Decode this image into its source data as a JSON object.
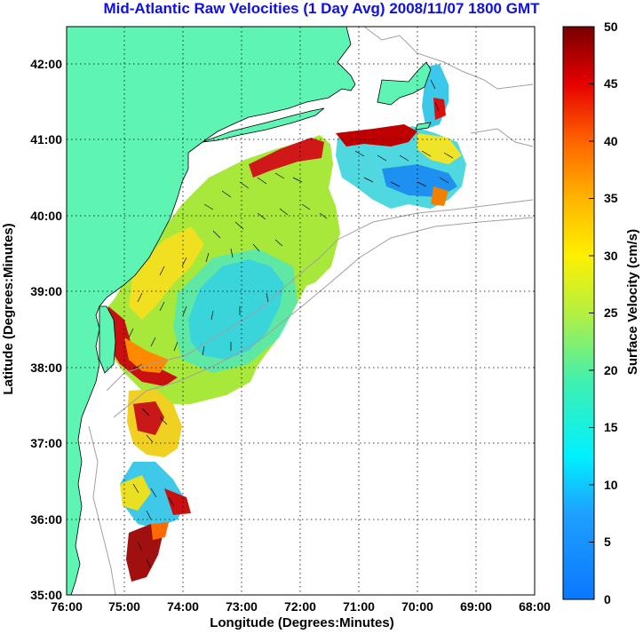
{
  "title": "Mid-Atlantic Raw Velocities (1 Day Avg) 2008/11/07 1800 GMT",
  "map": {
    "xlabel": "Longitude (Degrees:Minutes)",
    "ylabel": "Latitude (Degrees:Minutes)",
    "x_ticks": [
      "76:00",
      "75:00",
      "74:00",
      "73:00",
      "72:00",
      "71:00",
      "70:00",
      "69:00",
      "68:00"
    ],
    "y_ticks": [
      "42:00",
      "41:00",
      "40:00",
      "39:00",
      "38:00",
      "37:00",
      "36:00",
      "35:00"
    ],
    "lon_range": [
      -76,
      -68
    ],
    "lat_range": [
      35,
      42.5
    ],
    "grid": "dotted",
    "land_color": "#5ef5b4"
  },
  "colorbar": {
    "label": "Surface Velocity (cm/s)",
    "ticks": [
      "50",
      "45",
      "40",
      "35",
      "30",
      "25",
      "20",
      "15",
      "10",
      "5",
      "0"
    ],
    "range": [
      0,
      50
    ],
    "colormap": "jet"
  }
}
